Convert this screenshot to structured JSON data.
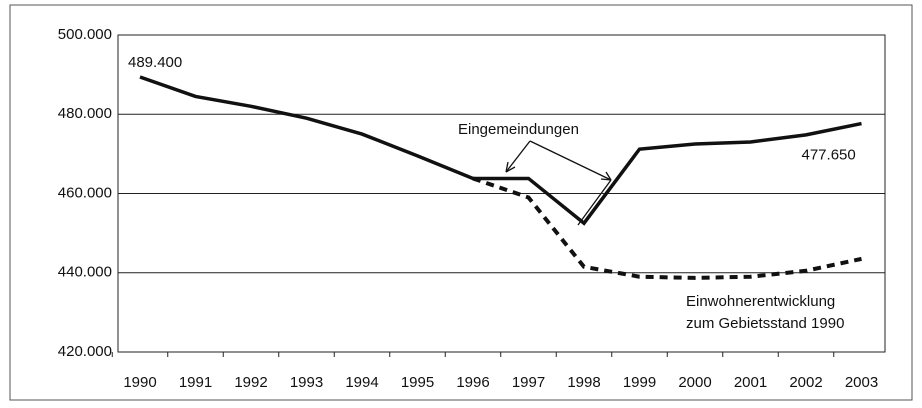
{
  "chart_data": {
    "type": "line",
    "categories": [
      "1990",
      "1991",
      "1992",
      "1993",
      "1994",
      "1995",
      "1996",
      "1997",
      "1998",
      "1999",
      "2000",
      "2001",
      "2002",
      "2003"
    ],
    "series": [
      {
        "color": "#111111",
        "style": "solid",
        "values": [
          489400,
          484500,
          482000,
          479000,
          475000,
          469500,
          463800,
          463800,
          452500,
          471200,
          472500,
          473000,
          474800,
          477650
        ],
        "value_labels": [
          "489.400",
          null,
          null,
          null,
          null,
          null,
          null,
          null,
          null,
          null,
          null,
          null,
          null,
          "477.650"
        ]
      },
      {
        "color": "#111111",
        "style": "dashed",
        "values": [
          null,
          null,
          null,
          null,
          null,
          null,
          463800,
          459000,
          441500,
          439000,
          438700,
          439000,
          440500,
          443500
        ]
      }
    ],
    "ylim": [
      420000,
      500000
    ],
    "yticks": [
      {
        "value": 420000,
        "label": "420.000"
      },
      {
        "value": 440000,
        "label": "440.000"
      },
      {
        "value": 460000,
        "label": "460.000"
      },
      {
        "value": 480000,
        "label": "480.000"
      },
      {
        "value": 500000,
        "label": "500.000"
      }
    ],
    "grid": true,
    "annotations": [
      {
        "text": "Eingemeindungen"
      },
      {
        "lines": [
          "Einwohnerentwicklung",
          "zum Gebietsstand 1990"
        ]
      }
    ]
  }
}
